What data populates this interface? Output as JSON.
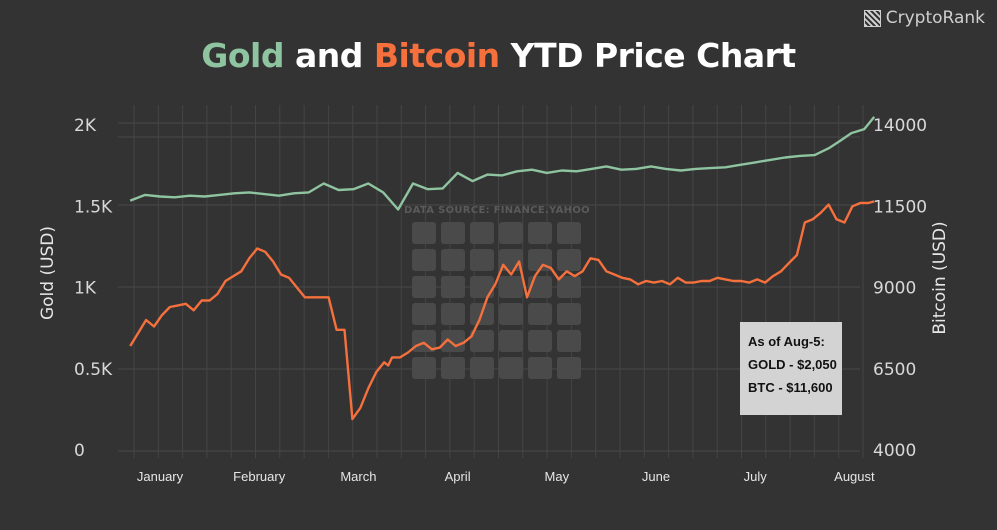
{
  "title": {
    "gold": "Gold",
    "and": "and",
    "bitcoin": "Bitcoin",
    "rest": "YTD Price Chart"
  },
  "brand": "CryptoRank",
  "source": "DATA SOURCE: FINANCE.YAHOO",
  "colors": {
    "gold": "#8fc4a0",
    "bitcoin": "#f5703c",
    "background": "#333333",
    "grid": "#4d4d4d"
  },
  "note": {
    "line1": "As of Aug-5:",
    "line2": "GOLD - $2,050",
    "line3": "BTC - $11,600"
  },
  "chart_data": {
    "type": "line",
    "title": "Gold and Bitcoin YTD Price Chart",
    "xlabel": "",
    "months": [
      "January",
      "February",
      "March",
      "April",
      "May",
      "June",
      "July",
      "August"
    ],
    "left_axis": {
      "label": "Gold (USD)",
      "ticks": [
        "0",
        "0.5K",
        "1K",
        "1.5K",
        "2K"
      ],
      "ylim": [
        0,
        2000
      ]
    },
    "right_axis": {
      "label": "Bitcoin (USD)",
      "ticks": [
        "4000",
        "6500",
        "9000",
        "11500",
        "14000"
      ],
      "ylim": [
        4000,
        14000
      ]
    },
    "grid": "vertical",
    "series": [
      {
        "name": "Gold",
        "axis": "left",
        "x": [
          0.7,
          0.85,
          1.0,
          1.15,
          1.3,
          1.45,
          1.6,
          1.75,
          1.9,
          2.05,
          2.2,
          2.35,
          2.5,
          2.65,
          2.8,
          2.95,
          3.1,
          3.25,
          3.4,
          3.55,
          3.7,
          3.85,
          4.0,
          4.15,
          4.3,
          4.45,
          4.6,
          4.75,
          4.9,
          5.05,
          5.2,
          5.35,
          5.5,
          5.65,
          5.8,
          5.95,
          6.1,
          6.25,
          6.4,
          6.55,
          6.7,
          6.85,
          7.0,
          7.15,
          7.3,
          7.45,
          7.6,
          7.75,
          7.85,
          7.97,
          8.1,
          8.2
        ],
        "values": [
          1535,
          1570,
          1560,
          1555,
          1565,
          1560,
          1570,
          1580,
          1585,
          1575,
          1565,
          1580,
          1585,
          1640,
          1600,
          1605,
          1640,
          1585,
          1480,
          1640,
          1605,
          1610,
          1705,
          1655,
          1695,
          1690,
          1715,
          1725,
          1705,
          1720,
          1715,
          1730,
          1745,
          1725,
          1730,
          1745,
          1730,
          1720,
          1730,
          1735,
          1740,
          1755,
          1770,
          1785,
          1800,
          1810,
          1815,
          1860,
          1900,
          1950,
          1975,
          2050
        ]
      },
      {
        "name": "Bitcoin",
        "axis": "right",
        "x": [
          0.7,
          0.78,
          0.86,
          0.94,
          1.02,
          1.1,
          1.18,
          1.26,
          1.34,
          1.42,
          1.5,
          1.58,
          1.66,
          1.74,
          1.82,
          1.9,
          1.98,
          2.06,
          2.14,
          2.22,
          2.3,
          2.38,
          2.46,
          2.54,
          2.62,
          2.7,
          2.78,
          2.86,
          2.94,
          3.02,
          3.1,
          3.18,
          3.26,
          3.3,
          3.34,
          3.42,
          3.5,
          3.58,
          3.66,
          3.74,
          3.82,
          3.9,
          3.98,
          4.06,
          4.14,
          4.22,
          4.3,
          4.38,
          4.46,
          4.54,
          4.62,
          4.7,
          4.78,
          4.86,
          4.94,
          5.02,
          5.1,
          5.18,
          5.26,
          5.34,
          5.42,
          5.5,
          5.58,
          5.66,
          5.74,
          5.82,
          5.9,
          5.98,
          6.06,
          6.14,
          6.22,
          6.3,
          6.38,
          6.46,
          6.54,
          6.62,
          6.7,
          6.78,
          6.86,
          6.94,
          7.02,
          7.1,
          7.18,
          7.26,
          7.34,
          7.42,
          7.5,
          7.58,
          7.66,
          7.74,
          7.82,
          7.9,
          7.98,
          8.06,
          8.14,
          8.2
        ],
        "values": [
          7200,
          7600,
          8000,
          7800,
          8150,
          8400,
          8450,
          8500,
          8300,
          8600,
          8600,
          8800,
          9200,
          9350,
          9500,
          9900,
          10200,
          10100,
          9800,
          9400,
          9300,
          9000,
          8700,
          8700,
          8700,
          8700,
          7700,
          7700,
          4950,
          5300,
          5900,
          6400,
          6700,
          6600,
          6850,
          6850,
          7000,
          7200,
          7300,
          7100,
          7150,
          7400,
          7200,
          7300,
          7500,
          8000,
          8700,
          9100,
          9700,
          9400,
          9800,
          8700,
          9350,
          9700,
          9600,
          9250,
          9500,
          9350,
          9500,
          9900,
          9850,
          9500,
          9400,
          9300,
          9250,
          9100,
          9200,
          9150,
          9200,
          9100,
          9300,
          9150,
          9150,
          9200,
          9200,
          9300,
          9250,
          9200,
          9200,
          9150,
          9250,
          9150,
          9350,
          9500,
          9750,
          10000,
          11000,
          11100,
          11300,
          11550,
          11100,
          11000,
          11500,
          11600,
          11600,
          11650
        ]
      }
    ]
  }
}
